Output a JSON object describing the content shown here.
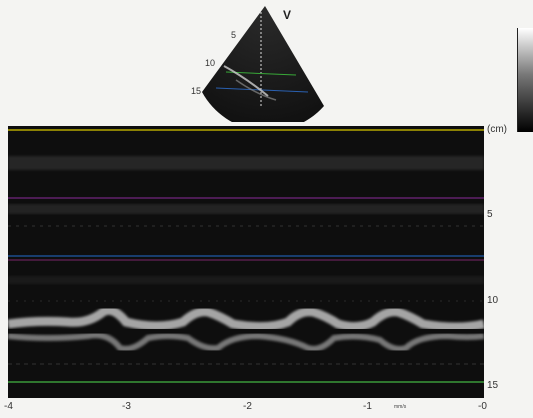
{
  "sector": {
    "marker": "V",
    "depth_labels": [
      "5",
      "10",
      "15"
    ]
  },
  "mmode": {
    "y_unit": "(cm)",
    "y_ticks": [
      "5",
      "10",
      "15"
    ],
    "x_ticks": [
      "-4",
      "-3",
      "-2",
      "-1",
      "-0"
    ],
    "x_unit": "mm/s"
  },
  "colors": {
    "background": "#f4f4f2",
    "image": "#0e0e0e",
    "trace_lines": [
      "#b6a800",
      "#8a2a9a",
      "#1e5aa8",
      "#3a9a3a",
      "#a0308a"
    ]
  }
}
